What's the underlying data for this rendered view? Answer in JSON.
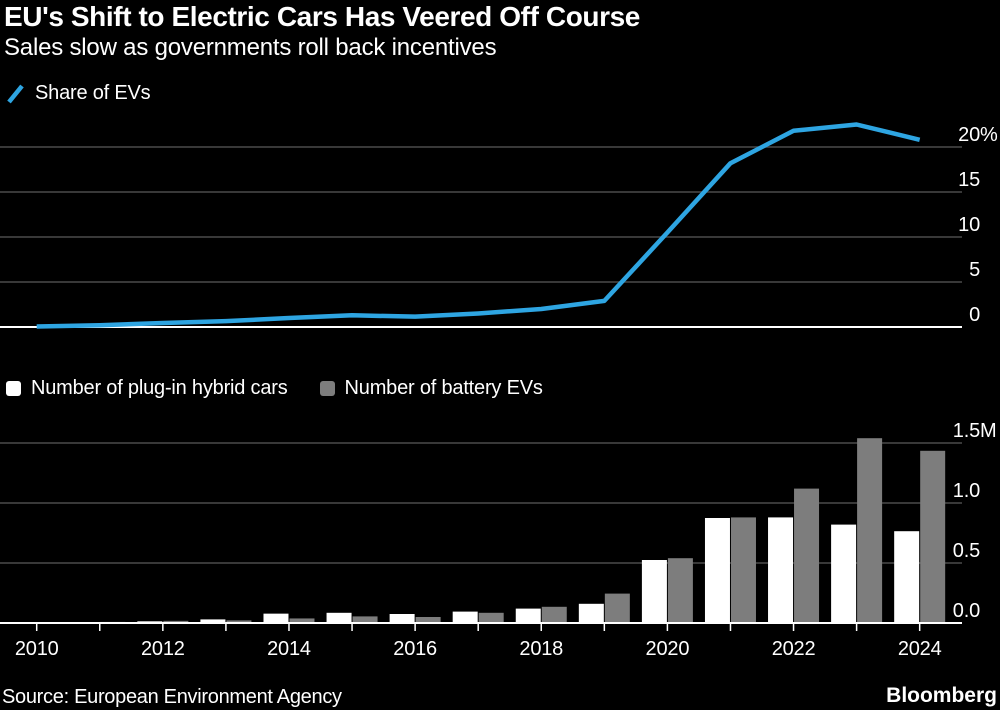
{
  "header": {
    "title": "EU's Shift to Electric Cars Has Veered Off Course",
    "subtitle": "Sales slow as governments roll back incentives"
  },
  "source": "Source: European Environment Agency",
  "brand": "Bloomberg",
  "colors": {
    "background": "#000000",
    "text": "#ffffff",
    "accent_blue": "#2ea5e2",
    "bar_white": "#ffffff",
    "bar_gray": "#7d7d7d",
    "grid": "#4a4a4a",
    "axis": "#ffffff"
  },
  "chart_data": [
    {
      "type": "line",
      "name": "share-of-evs",
      "legend": "Share of EVs",
      "x": [
        2010,
        2011,
        2012,
        2013,
        2014,
        2015,
        2016,
        2017,
        2018,
        2019,
        2020,
        2021,
        2022,
        2023,
        2024
      ],
      "values": [
        0.05,
        0.2,
        0.45,
        0.65,
        1.0,
        1.3,
        1.15,
        1.5,
        2.0,
        2.9,
        10.5,
        18.2,
        21.8,
        22.5,
        20.8
      ],
      "ylim": [
        0,
        22.5
      ],
      "grid": true,
      "legend_position": "top-left",
      "yticks": [
        {
          "v": 0,
          "label": "0"
        },
        {
          "v": 5,
          "label": "5"
        },
        {
          "v": 10,
          "label": "10"
        },
        {
          "v": 15,
          "label": "15"
        },
        {
          "v": 20,
          "label": "20",
          "suffix": "%"
        }
      ]
    },
    {
      "type": "bar",
      "name": "ev-registrations",
      "categories": [
        2010,
        2011,
        2012,
        2013,
        2014,
        2015,
        2016,
        2017,
        2018,
        2019,
        2020,
        2021,
        2022,
        2023,
        2024
      ],
      "series": [
        {
          "name": "Number of plug-in hybrid cars",
          "color_key": "bar_white",
          "values": [
            0.002,
            0.006,
            0.014,
            0.03,
            0.078,
            0.085,
            0.075,
            0.095,
            0.12,
            0.16,
            0.525,
            0.875,
            0.88,
            0.82,
            0.765
          ]
        },
        {
          "name": "Number of battery EVs",
          "color_key": "bar_gray",
          "values": [
            0.002,
            0.009,
            0.018,
            0.022,
            0.038,
            0.055,
            0.05,
            0.085,
            0.135,
            0.245,
            0.54,
            0.88,
            1.12,
            1.54,
            1.435
          ]
        }
      ],
      "ylim": [
        0,
        1.55
      ],
      "grid": true,
      "xtick_every": 2,
      "yticks": [
        {
          "v": 0,
          "label": "0.0"
        },
        {
          "v": 0.5,
          "label": "0.5"
        },
        {
          "v": 1.0,
          "label": "1.0"
        },
        {
          "v": 1.5,
          "label": "1.5",
          "suffix": "M"
        }
      ]
    }
  ]
}
